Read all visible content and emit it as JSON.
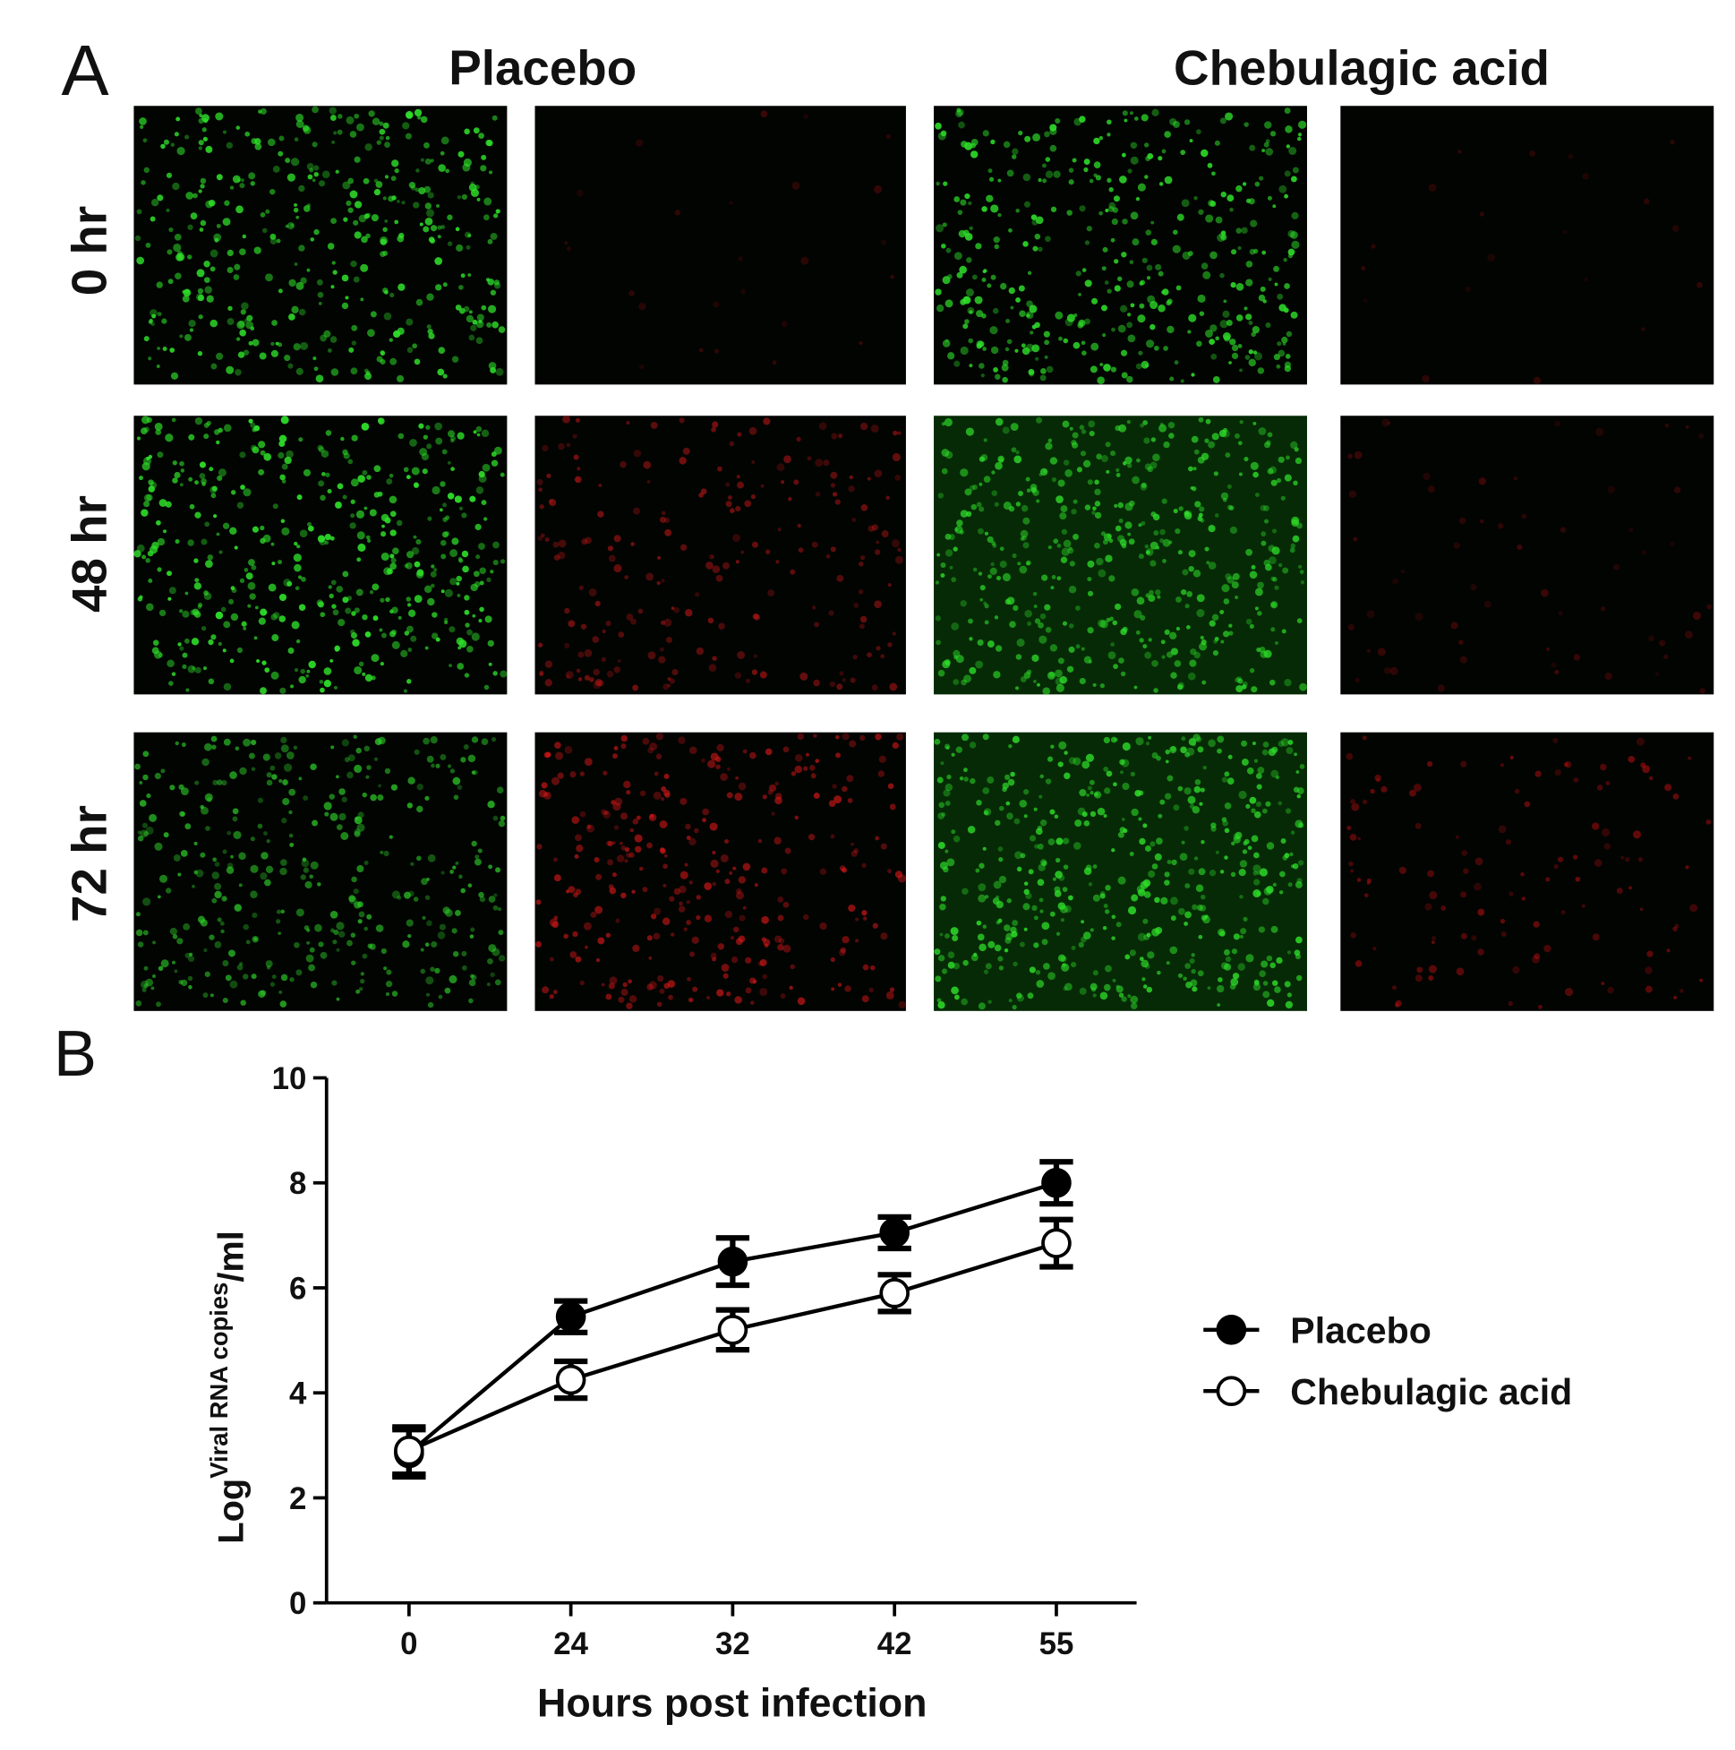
{
  "figure": {
    "panel_a": {
      "label": "A",
      "columns": [
        "Placebo",
        "Chebulagic acid"
      ],
      "rows": [
        "0 hr",
        "48 hr",
        "72 hr"
      ]
    },
    "panel_b": {
      "label": "B"
    }
  },
  "chart_data": {
    "type": "line",
    "categories": [
      "0",
      "24",
      "32",
      "42",
      "55"
    ],
    "x_label": "Hours post infection",
    "y_label": {
      "base": "Log",
      "superscript": "Viral RNA copies",
      "suffix": "/ml"
    },
    "ylim": [
      0,
      10
    ],
    "yticks": [
      0,
      2,
      4,
      6,
      8,
      10
    ],
    "legend": "right",
    "series": [
      {
        "name": "Placebo",
        "color": "#000000",
        "marker": "filled",
        "values": [
          2.85,
          5.45,
          6.5,
          7.05,
          8.0
        ],
        "errors": [
          0.45,
          0.3,
          0.45,
          0.3,
          0.4
        ]
      },
      {
        "name": "Chebulagic acid",
        "color": "#000000",
        "marker": "open",
        "values": [
          2.9,
          4.25,
          5.2,
          5.9,
          6.85
        ],
        "errors": [
          0.45,
          0.35,
          0.38,
          0.35,
          0.45
        ]
      }
    ]
  }
}
